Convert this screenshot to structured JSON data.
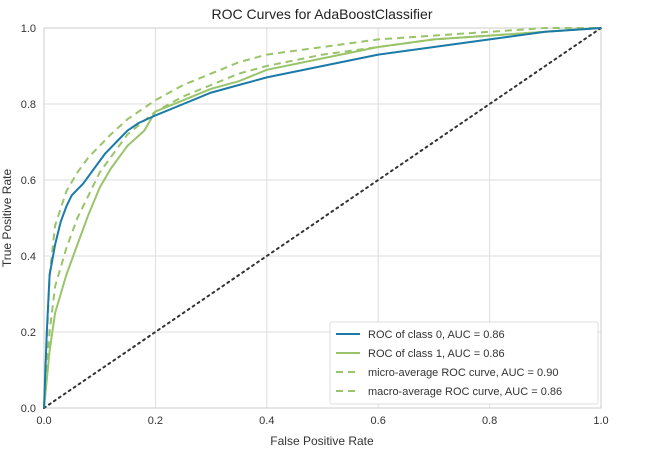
{
  "chart_data": {
    "type": "line",
    "title": "ROC Curves for AdaBoostClassifier",
    "xlabel": "False Positive Rate",
    "ylabel": "True Positive Rate",
    "xlim": [
      0.0,
      1.0
    ],
    "ylim": [
      0.0,
      1.0
    ],
    "xticks": [
      "0.0",
      "0.2",
      "0.4",
      "0.6",
      "0.8",
      "1.0"
    ],
    "yticks": [
      "0.0",
      "0.2",
      "0.4",
      "0.6",
      "0.8",
      "1.0"
    ],
    "grid": true,
    "legend_position": "bottom-right",
    "colors": {
      "class0": "#1f77b4",
      "class1": "#99c46a",
      "diagonal": "#333333",
      "grid": "#dddddd"
    },
    "series": [
      {
        "name": "ROC of class 0, AUC = 0.86",
        "style": "solid",
        "color": "#1a7aa8",
        "x": [
          0.0,
          0.005,
          0.01,
          0.02,
          0.03,
          0.04,
          0.05,
          0.07,
          0.09,
          0.11,
          0.13,
          0.15,
          0.17,
          0.2,
          0.25,
          0.3,
          0.35,
          0.4,
          0.5,
          0.6,
          0.7,
          0.8,
          0.9,
          1.0
        ],
        "y": [
          0.0,
          0.2,
          0.35,
          0.43,
          0.49,
          0.53,
          0.56,
          0.59,
          0.63,
          0.67,
          0.7,
          0.73,
          0.75,
          0.77,
          0.8,
          0.83,
          0.85,
          0.87,
          0.9,
          0.93,
          0.95,
          0.97,
          0.99,
          1.0
        ]
      },
      {
        "name": "ROC of class 1, AUC = 0.86",
        "style": "solid",
        "color": "#99c46a",
        "x": [
          0.0,
          0.01,
          0.02,
          0.04,
          0.06,
          0.08,
          0.1,
          0.12,
          0.15,
          0.18,
          0.2,
          0.25,
          0.3,
          0.35,
          0.4,
          0.5,
          0.6,
          0.7,
          0.8,
          0.9,
          1.0
        ],
        "y": [
          0.0,
          0.15,
          0.25,
          0.35,
          0.43,
          0.51,
          0.58,
          0.63,
          0.69,
          0.73,
          0.78,
          0.81,
          0.84,
          0.86,
          0.89,
          0.92,
          0.95,
          0.97,
          0.98,
          0.99,
          1.0
        ]
      },
      {
        "name": "micro-average ROC curve, AUC = 0.90",
        "style": "dashed",
        "color": "#99c46a",
        "x": [
          0.0,
          0.01,
          0.02,
          0.04,
          0.06,
          0.08,
          0.1,
          0.12,
          0.15,
          0.2,
          0.25,
          0.3,
          0.35,
          0.4,
          0.5,
          0.6,
          0.7,
          0.8,
          0.9,
          1.0
        ],
        "y": [
          0.0,
          0.35,
          0.48,
          0.57,
          0.62,
          0.66,
          0.69,
          0.72,
          0.76,
          0.81,
          0.85,
          0.88,
          0.91,
          0.93,
          0.95,
          0.97,
          0.98,
          0.99,
          1.0,
          1.0
        ]
      },
      {
        "name": "macro-average ROC curve, AUC = 0.86",
        "style": "dashed",
        "color": "#99c46a",
        "x": [
          0.0,
          0.01,
          0.02,
          0.04,
          0.06,
          0.08,
          0.1,
          0.12,
          0.15,
          0.2,
          0.25,
          0.3,
          0.35,
          0.4,
          0.5,
          0.6,
          0.7,
          0.8,
          0.9,
          1.0
        ],
        "y": [
          0.0,
          0.2,
          0.32,
          0.42,
          0.5,
          0.56,
          0.62,
          0.66,
          0.72,
          0.78,
          0.82,
          0.85,
          0.88,
          0.9,
          0.93,
          0.95,
          0.97,
          0.98,
          0.99,
          1.0
        ]
      }
    ],
    "diagonal": {
      "style": "dotted",
      "x": [
        0.0,
        1.0
      ],
      "y": [
        0.0,
        1.0
      ]
    }
  }
}
